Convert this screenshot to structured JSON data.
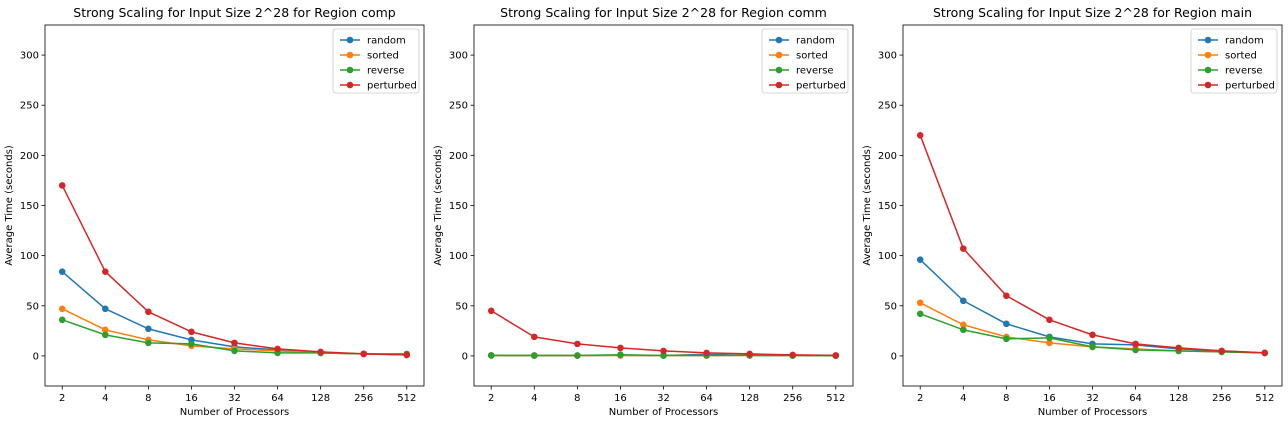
{
  "chart_data": [
    {
      "type": "line",
      "title": "Strong Scaling for Input Size 2^28 for Region comp",
      "xlabel": "Number of Processors",
      "ylabel": "Average Time (seconds)",
      "categories": [
        "2",
        "4",
        "8",
        "16",
        "32",
        "64",
        "128",
        "256",
        "512"
      ],
      "ylim": [
        -30,
        330
      ],
      "yticks": [
        0,
        50,
        100,
        150,
        200,
        250,
        300
      ],
      "grid": false,
      "legend": "top-right",
      "series": [
        {
          "name": "random",
          "color": "#1f77b4",
          "values": [
            84,
            47,
            27,
            16,
            9,
            6,
            3,
            2,
            1
          ]
        },
        {
          "name": "sorted",
          "color": "#ff7f0e",
          "values": [
            47,
            26,
            16,
            10,
            7,
            5,
            3,
            2,
            1
          ]
        },
        {
          "name": "reverse",
          "color": "#2ca02c",
          "values": [
            36,
            21,
            13,
            12,
            5,
            3,
            3,
            2,
            2
          ]
        },
        {
          "name": "perturbed",
          "color": "#d62728",
          "values": [
            170,
            84,
            44,
            24,
            13,
            7,
            4,
            2,
            1
          ]
        }
      ]
    },
    {
      "type": "line",
      "title": "Strong Scaling for Input Size 2^28 for Region comm",
      "xlabel": "Number of Processors",
      "ylabel": "Average Time (seconds)",
      "categories": [
        "2",
        "4",
        "8",
        "16",
        "32",
        "64",
        "128",
        "256",
        "512"
      ],
      "ylim": [
        -30,
        330
      ],
      "yticks": [
        0,
        50,
        100,
        150,
        200,
        250,
        300
      ],
      "grid": false,
      "legend": "top-right",
      "series": [
        {
          "name": "random",
          "color": "#1f77b4",
          "values": [
            0.5,
            0.4,
            0.4,
            0.5,
            0.4,
            1.5,
            0.5,
            0.4,
            0.3
          ]
        },
        {
          "name": "sorted",
          "color": "#ff7f0e",
          "values": [
            0.5,
            0.4,
            0.4,
            0.5,
            0.4,
            0.4,
            0.5,
            0.4,
            0.3
          ]
        },
        {
          "name": "reverse",
          "color": "#2ca02c",
          "values": [
            0.5,
            0.4,
            0.4,
            1.2,
            0.4,
            0.4,
            0.5,
            0.4,
            0.3
          ]
        },
        {
          "name": "perturbed",
          "color": "#d62728",
          "values": [
            45,
            19,
            12,
            8,
            5,
            3,
            2,
            1,
            0.5
          ]
        }
      ]
    },
    {
      "type": "line",
      "title": "Strong Scaling for Input Size 2^28 for Region main",
      "xlabel": "Number of Processors",
      "ylabel": "Average Time (seconds)",
      "categories": [
        "2",
        "4",
        "8",
        "16",
        "32",
        "64",
        "128",
        "256",
        "512"
      ],
      "ylim": [
        -30,
        330
      ],
      "yticks": [
        0,
        50,
        100,
        150,
        200,
        250,
        300
      ],
      "grid": false,
      "legend": "top-right",
      "series": [
        {
          "name": "random",
          "color": "#1f77b4",
          "values": [
            96,
            55,
            32,
            19,
            12,
            11,
            7,
            5,
            3
          ]
        },
        {
          "name": "sorted",
          "color": "#ff7f0e",
          "values": [
            53,
            31,
            19,
            13,
            9,
            7,
            5,
            4,
            3
          ]
        },
        {
          "name": "reverse",
          "color": "#2ca02c",
          "values": [
            42,
            26,
            17,
            18,
            9,
            6,
            5,
            4,
            3
          ]
        },
        {
          "name": "perturbed",
          "color": "#d62728",
          "values": [
            220,
            107,
            60,
            36,
            21,
            12,
            8,
            5,
            3
          ]
        }
      ]
    }
  ]
}
